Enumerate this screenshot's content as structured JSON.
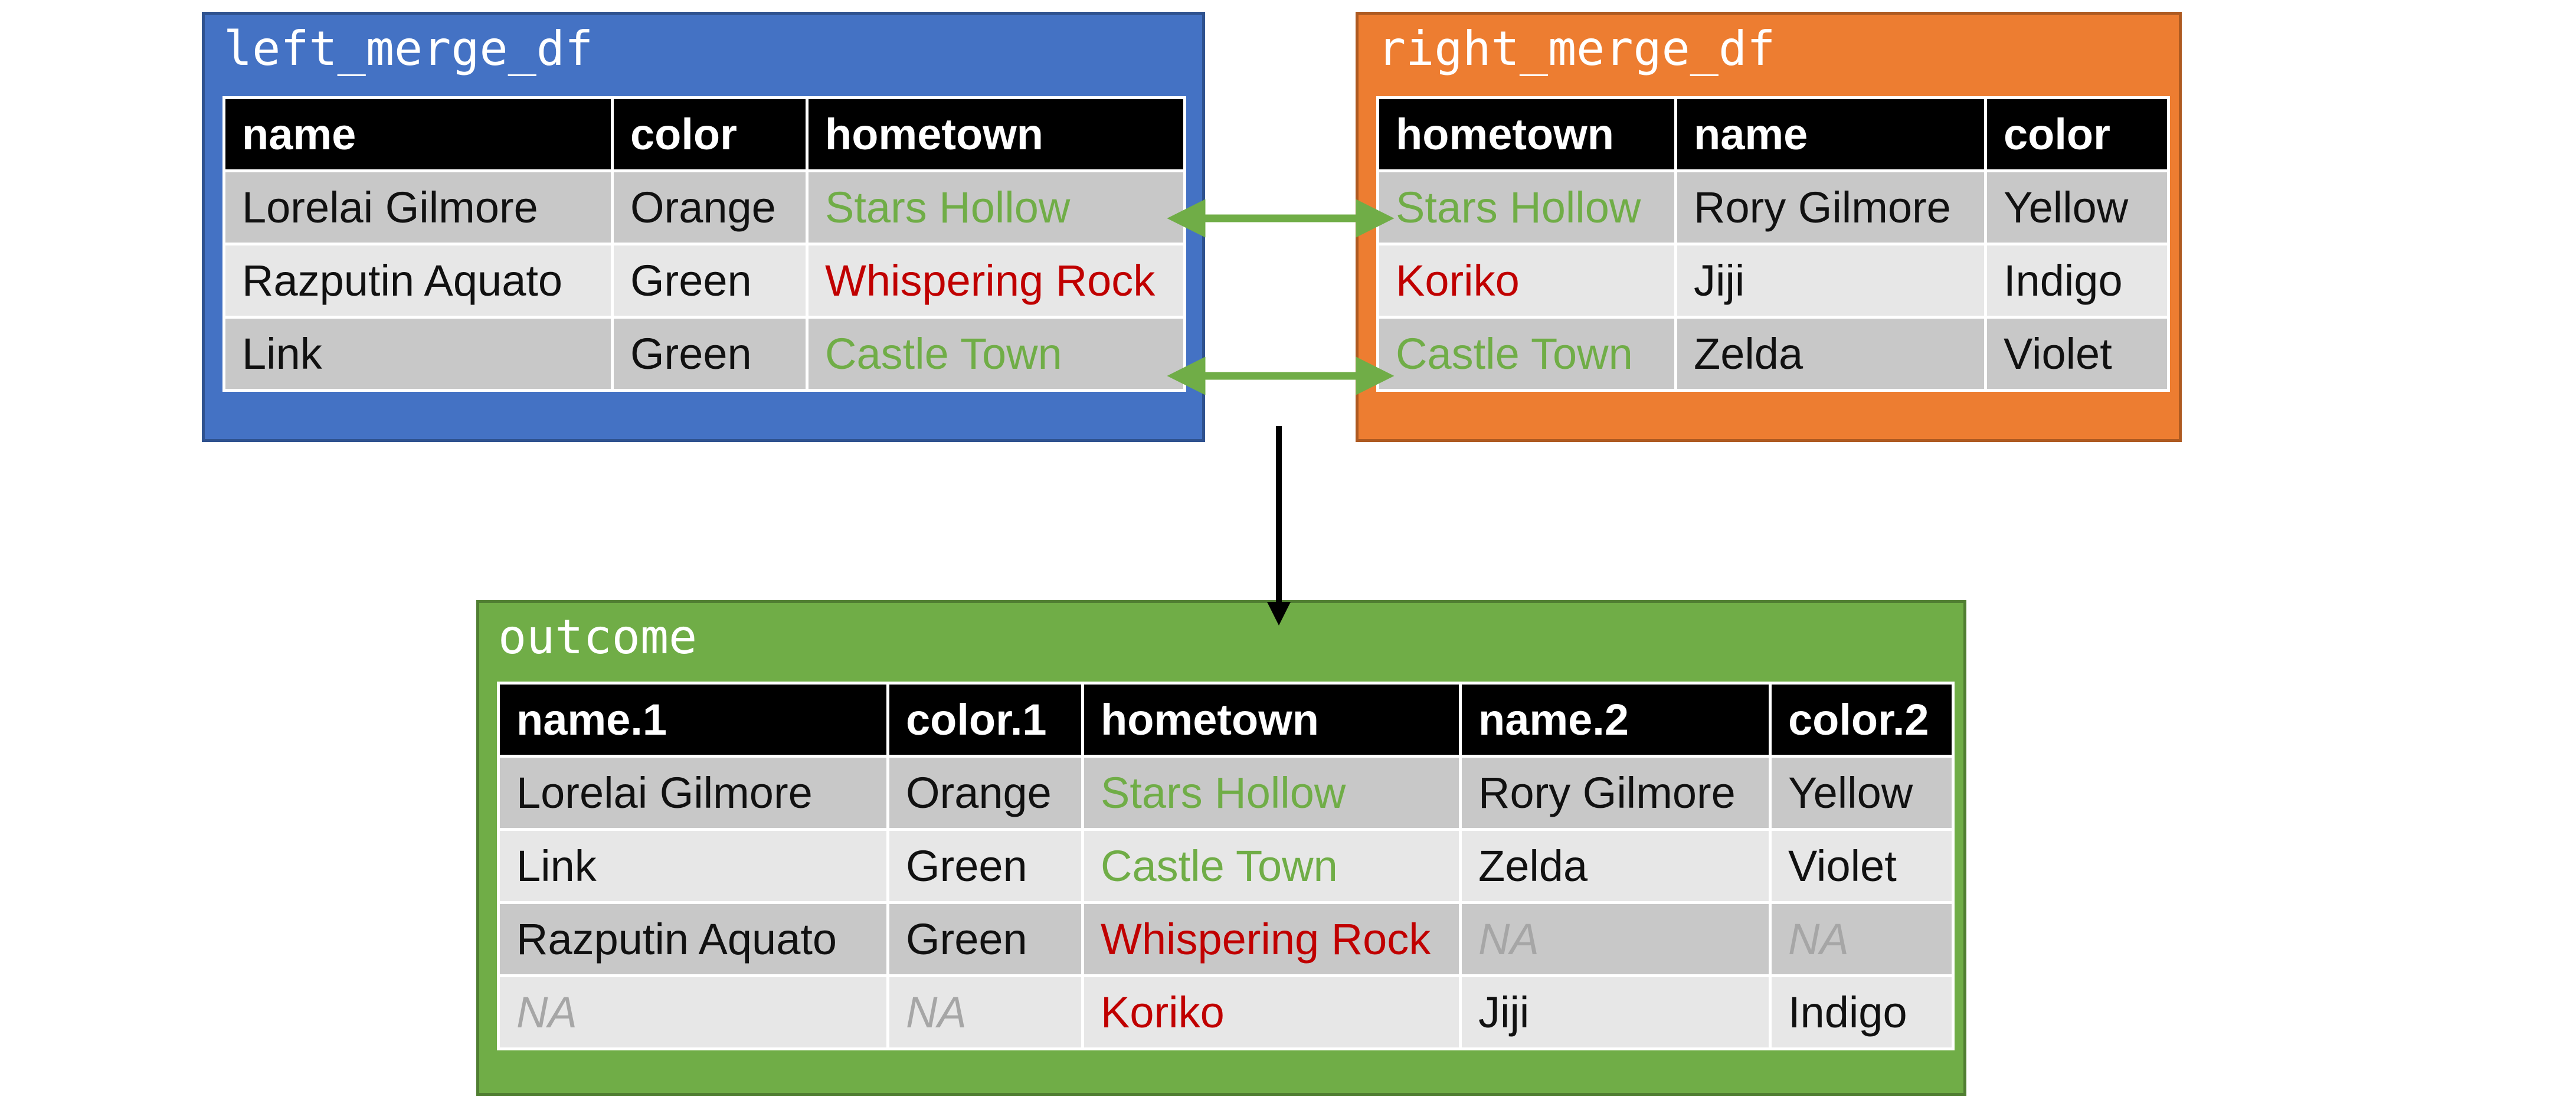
{
  "left": {
    "title": "left_merge_df",
    "headers": [
      "name",
      "color",
      "hometown"
    ],
    "rows": [
      [
        {
          "text": "Lorelai Gilmore",
          "kind": ""
        },
        {
          "text": "Orange",
          "kind": ""
        },
        {
          "text": "Stars Hollow",
          "kind": "match"
        }
      ],
      [
        {
          "text": "Razputin Aquato",
          "kind": ""
        },
        {
          "text": "Green",
          "kind": ""
        },
        {
          "text": "Whispering Rock",
          "kind": "nomatch"
        }
      ],
      [
        {
          "text": "Link",
          "kind": ""
        },
        {
          "text": "Green",
          "kind": ""
        },
        {
          "text": "Castle Town",
          "kind": "match"
        }
      ]
    ]
  },
  "right": {
    "title": "right_merge_df",
    "headers": [
      "hometown",
      "name",
      "color"
    ],
    "rows": [
      [
        {
          "text": "Stars Hollow",
          "kind": "match"
        },
        {
          "text": "Rory Gilmore",
          "kind": ""
        },
        {
          "text": "Yellow",
          "kind": ""
        }
      ],
      [
        {
          "text": "Koriko",
          "kind": "nomatch"
        },
        {
          "text": "Jiji",
          "kind": ""
        },
        {
          "text": "Indigo",
          "kind": ""
        }
      ],
      [
        {
          "text": "Castle Town",
          "kind": "match"
        },
        {
          "text": "Zelda",
          "kind": ""
        },
        {
          "text": "Violet",
          "kind": ""
        }
      ]
    ]
  },
  "outcome": {
    "title": "outcome",
    "headers": [
      "name.1",
      "color.1",
      "hometown",
      "name.2",
      "color.2"
    ],
    "rows": [
      [
        {
          "text": "Lorelai Gilmore",
          "kind": ""
        },
        {
          "text": "Orange",
          "kind": ""
        },
        {
          "text": "Stars Hollow",
          "kind": "match"
        },
        {
          "text": "Rory Gilmore",
          "kind": ""
        },
        {
          "text": "Yellow",
          "kind": ""
        }
      ],
      [
        {
          "text": "Link",
          "kind": ""
        },
        {
          "text": "Green",
          "kind": ""
        },
        {
          "text": "Castle Town",
          "kind": "match"
        },
        {
          "text": "Zelda",
          "kind": ""
        },
        {
          "text": "Violet",
          "kind": ""
        }
      ],
      [
        {
          "text": "Razputin Aquato",
          "kind": ""
        },
        {
          "text": "Green",
          "kind": ""
        },
        {
          "text": "Whispering Rock",
          "kind": "nomatch"
        },
        {
          "text": "NA",
          "kind": "na"
        },
        {
          "text": "NA",
          "kind": "na"
        }
      ],
      [
        {
          "text": "NA",
          "kind": "na"
        },
        {
          "text": "NA",
          "kind": "na"
        },
        {
          "text": "Koriko",
          "kind": "nomatch"
        },
        {
          "text": "Jiji",
          "kind": ""
        },
        {
          "text": "Indigo",
          "kind": ""
        }
      ]
    ]
  },
  "colors": {
    "left_panel": "#4472c4",
    "right_panel": "#ed7d31",
    "outcome_panel": "#70ad47",
    "match_text": "#70ad47",
    "nomatch_text": "#c00000",
    "na_text": "#a6a6a6",
    "header_bg": "#000000",
    "link_arrow": "#70ad47",
    "flow_arrow": "#000000"
  }
}
